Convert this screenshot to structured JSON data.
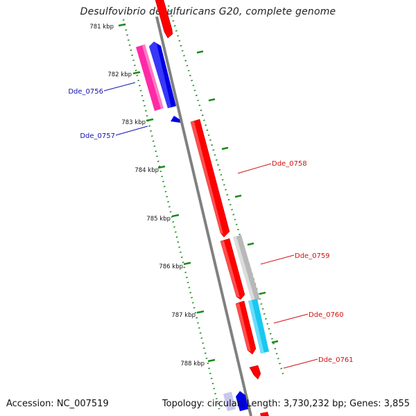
{
  "title": "Desulfovibrio desulfuricans G20, complete genome",
  "footer": {
    "accession": "Accession: NC_007519",
    "summary": "Topology: circular; Length: 3,730,232 bp; Genes: 3,855"
  },
  "kbp_labels": [
    "781 kbp",
    "782 kbp",
    "783 kbp",
    "784 kbp",
    "785 kbp",
    "786 kbp",
    "787 kbp",
    "788 kbp"
  ],
  "gene_labels": {
    "dde_0756": "Dde_0756",
    "dde_0757": "Dde_0757",
    "dde_0758": "Dde_0758",
    "dde_0759": "Dde_0759",
    "dde_0760": "Dde_0760",
    "dde_0761": "Dde_0761"
  },
  "colors": {
    "axis": "#808080",
    "ticks": "#1a8a1a",
    "forward_gene": "#ff0000",
    "reverse_gene": "#0000e6",
    "pink_feature": "#ff2aa6",
    "gray_feature": "#b8b8b8",
    "cyan_feature": "#19c8f0",
    "left_label": "#1010b0",
    "right_label": "#d01010"
  }
}
